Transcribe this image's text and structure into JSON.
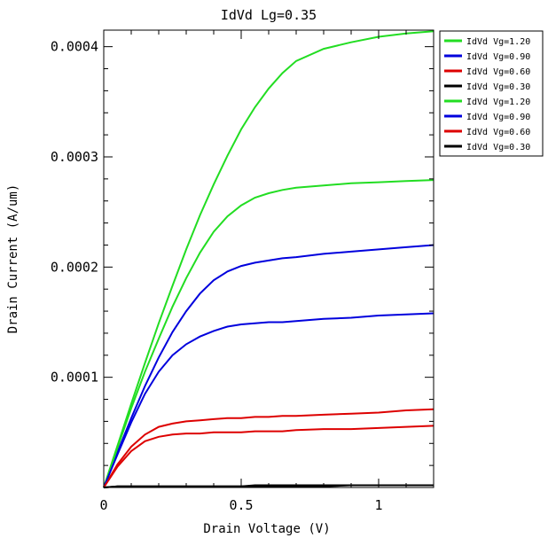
{
  "chart_data": {
    "type": "line",
    "title": "IdVd Lg=0.35",
    "xlabel": "Drain Voltage (V)",
    "ylabel": "Drain Current (A/um)",
    "xlim": [
      0,
      1.2
    ],
    "ylim": [
      0,
      0.000415
    ],
    "x_ticks": [
      {
        "value": 0,
        "label": "0"
      },
      {
        "value": 0.5,
        "label": "0.5"
      },
      {
        "value": 1,
        "label": "1"
      }
    ],
    "y_ticks": [
      {
        "value": 0.0001,
        "label": "0.0001"
      },
      {
        "value": 0.0002,
        "label": "0.0002"
      },
      {
        "value": 0.0003,
        "label": "0.0003"
      },
      {
        "value": 0.0004,
        "label": "0.0004"
      }
    ],
    "grid": false,
    "legend_position": "right",
    "x": [
      0,
      0.05,
      0.1,
      0.15,
      0.2,
      0.25,
      0.3,
      0.35,
      0.4,
      0.45,
      0.5,
      0.55,
      0.6,
      0.65,
      0.7,
      0.8,
      0.9,
      1.0,
      1.1,
      1.2
    ],
    "series": [
      {
        "name": "IdVd Vg=1.20",
        "color": "#22dd22",
        "values": [
          0,
          3.8e-05,
          7.6e-05,
          0.000113,
          0.000149,
          0.000183,
          0.000216,
          0.000247,
          0.000275,
          0.000301,
          0.000325,
          0.000345,
          0.000362,
          0.000376,
          0.000387,
          0.000398,
          0.000404,
          0.000409,
          0.000412,
          0.000414
        ]
      },
      {
        "name": "IdVd Vg=0.90",
        "color": "#0000dd",
        "values": [
          0,
          3.2e-05,
          6.3e-05,
          9.2e-05,
          0.000118,
          0.000141,
          0.00016,
          0.000176,
          0.000188,
          0.000196,
          0.000201,
          0.000204,
          0.000206,
          0.000208,
          0.000209,
          0.000212,
          0.000214,
          0.000216,
          0.000218,
          0.00022
        ]
      },
      {
        "name": "IdVd Vg=0.60",
        "color": "#dd0000",
        "values": [
          0,
          2.1e-05,
          3.7e-05,
          4.8e-05,
          5.5e-05,
          5.8e-05,
          6e-05,
          6.1e-05,
          6.2e-05,
          6.3e-05,
          6.3e-05,
          6.4e-05,
          6.4e-05,
          6.5e-05,
          6.5e-05,
          6.6e-05,
          6.7e-05,
          6.8e-05,
          7e-05,
          7.1e-05
        ]
      },
      {
        "name": "IdVd Vg=0.30",
        "color": "#000000",
        "values": [
          0,
          1e-06,
          1e-06,
          1e-06,
          1e-06,
          1e-06,
          1e-06,
          1e-06,
          1e-06,
          1e-06,
          1e-06,
          2e-06,
          2e-06,
          2e-06,
          2e-06,
          2e-06,
          2e-06,
          2e-06,
          2e-06,
          2e-06
        ]
      },
      {
        "name": "IdVd Vg=1.20",
        "color": "#22dd22",
        "values": [
          0,
          3.6e-05,
          7.2e-05,
          0.000105,
          0.000135,
          0.000164,
          0.00019,
          0.000213,
          0.000232,
          0.000246,
          0.000256,
          0.000263,
          0.000267,
          0.00027,
          0.000272,
          0.000274,
          0.000276,
          0.000277,
          0.000278,
          0.000279
        ]
      },
      {
        "name": "IdVd Vg=0.90",
        "color": "#0000dd",
        "values": [
          0,
          3e-05,
          5.9e-05,
          8.5e-05,
          0.000105,
          0.00012,
          0.00013,
          0.000137,
          0.000142,
          0.000146,
          0.000148,
          0.000149,
          0.00015,
          0.00015,
          0.000151,
          0.000153,
          0.000154,
          0.000156,
          0.000157,
          0.000158
        ]
      },
      {
        "name": "IdVd Vg=0.60",
        "color": "#dd0000",
        "values": [
          0,
          1.9e-05,
          3.3e-05,
          4.2e-05,
          4.6e-05,
          4.8e-05,
          4.9e-05,
          4.9e-05,
          5e-05,
          5e-05,
          5e-05,
          5.1e-05,
          5.1e-05,
          5.1e-05,
          5.2e-05,
          5.3e-05,
          5.3e-05,
          5.4e-05,
          5.5e-05,
          5.6e-05
        ]
      },
      {
        "name": "IdVd Vg=0.30",
        "color": "#000000",
        "values": [
          0,
          1e-06,
          1e-06,
          1e-06,
          1e-06,
          1e-06,
          1e-06,
          1e-06,
          1e-06,
          1e-06,
          1e-06,
          1e-06,
          1e-06,
          1e-06,
          1e-06,
          1e-06,
          2e-06,
          2e-06,
          2e-06,
          2e-06
        ]
      }
    ]
  }
}
